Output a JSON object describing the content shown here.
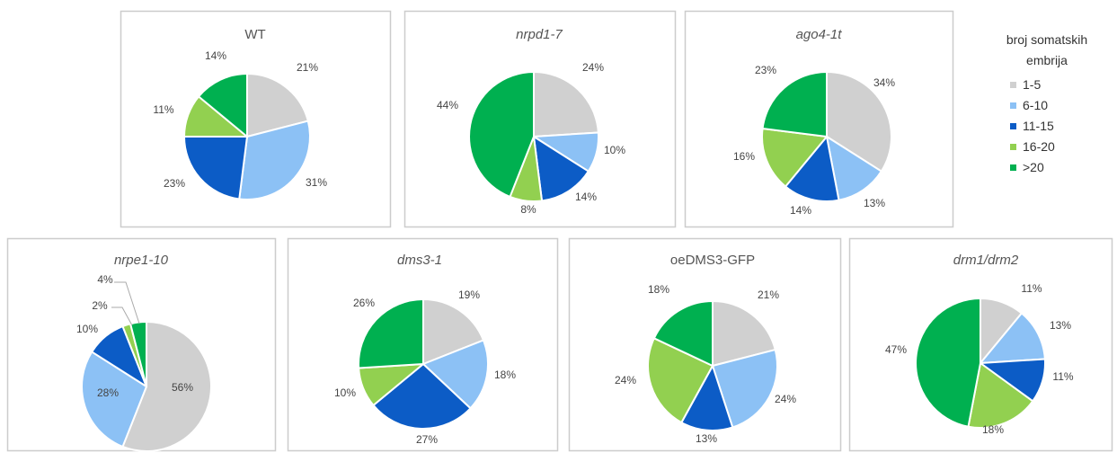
{
  "legend": {
    "title_line1": "broj somatskih",
    "title_line2": "embrija",
    "items": [
      {
        "label": "1-5",
        "color": "#d0d0d0"
      },
      {
        "label": "6-10",
        "color": "#8cc1f5"
      },
      {
        "label": "11-15",
        "color": "#0c5cc6"
      },
      {
        "label": "16-20",
        "color": "#92d050"
      },
      {
        "label": ">20",
        "color": "#00b050"
      }
    ]
  },
  "chart_data": [
    {
      "type": "pie",
      "title": "WT",
      "italic": false,
      "categories": [
        "1-5",
        "6-10",
        "11-15",
        "16-20",
        ">20"
      ],
      "values": [
        21,
        31,
        23,
        11,
        14
      ],
      "labels": [
        "21%",
        "31%",
        "23%",
        "11%",
        "14%"
      ]
    },
    {
      "type": "pie",
      "title": "nrpd1-7",
      "italic": true,
      "categories": [
        "1-5",
        "6-10",
        "11-15",
        "16-20",
        ">20"
      ],
      "values": [
        24,
        10,
        14,
        8,
        44
      ],
      "labels": [
        "24%",
        "10%",
        "14%",
        "8%",
        "44%"
      ]
    },
    {
      "type": "pie",
      "title": "ago4-1t",
      "italic": true,
      "categories": [
        "1-5",
        "6-10",
        "11-15",
        "16-20",
        ">20"
      ],
      "values": [
        34,
        13,
        14,
        16,
        23
      ],
      "labels": [
        "34%",
        "13%",
        "14%",
        "16%",
        "23%"
      ]
    },
    {
      "type": "pie",
      "title": "nrpe1-10",
      "italic": true,
      "categories": [
        "1-5",
        "6-10",
        "11-15",
        "16-20",
        ">20"
      ],
      "values": [
        56,
        28,
        10,
        2,
        4
      ],
      "labels": [
        "56%",
        "28%",
        "10%",
        "2%",
        "4%"
      ]
    },
    {
      "type": "pie",
      "title": "dms3-1",
      "italic": true,
      "categories": [
        "1-5",
        "6-10",
        "11-15",
        "16-20",
        ">20"
      ],
      "values": [
        19,
        18,
        27,
        10,
        26
      ],
      "labels": [
        "19%",
        "18%",
        "27%",
        "10%",
        "26%"
      ]
    },
    {
      "type": "pie",
      "title": "oeDMS3-GFP",
      "italic": false,
      "categories": [
        "1-5",
        "6-10",
        "11-15",
        "16-20",
        ">20"
      ],
      "values": [
        21,
        24,
        13,
        24,
        18
      ],
      "labels": [
        "21%",
        "24%",
        "13%",
        "24%",
        "18%"
      ]
    },
    {
      "type": "pie",
      "title": "drm1/drm2",
      "italic": true,
      "categories": [
        "1-5",
        "6-10",
        "11-15",
        "16-20",
        ">20"
      ],
      "values": [
        11,
        13,
        11,
        18,
        47
      ],
      "labels": [
        "11%",
        "13%",
        "11%",
        "18%",
        "47%"
      ]
    }
  ]
}
